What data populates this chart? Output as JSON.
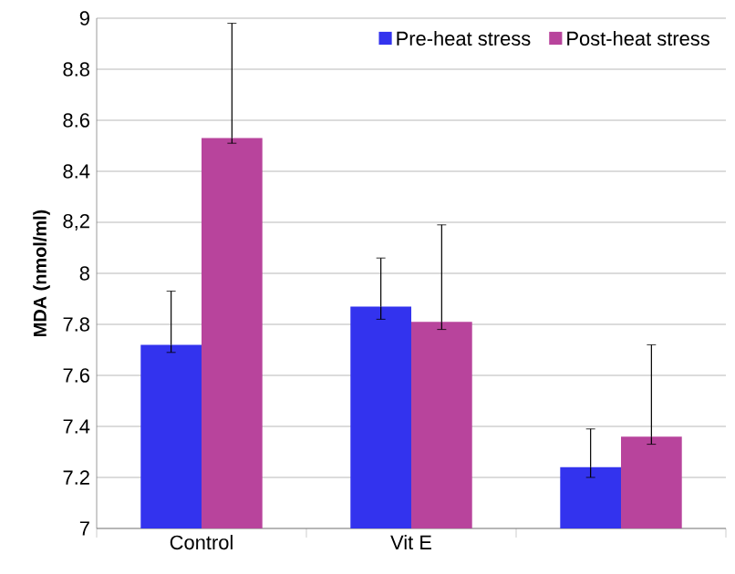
{
  "chart_data": {
    "type": "bar",
    "ylabel": "MDA (nmol/ml)",
    "categories": [
      "Control",
      "Vit E",
      null
    ],
    "series": [
      {
        "name": "Pre-heat stress",
        "color": "#3333ee",
        "values": [
          7.72,
          7.87,
          7.24
        ],
        "errors": [
          [
            7.69,
            7.93
          ],
          [
            7.82,
            8.06
          ],
          [
            7.2,
            7.39
          ]
        ]
      },
      {
        "name": "Post-heat stress",
        "color": "#b8449c",
        "values": [
          8.53,
          7.81,
          7.36
        ],
        "errors": [
          [
            8.51,
            8.98
          ],
          [
            7.78,
            8.19
          ],
          [
            7.33,
            7.72
          ]
        ]
      }
    ],
    "ylim": [
      7,
      9
    ],
    "yticks": [
      7,
      7.2,
      7.4,
      7.6,
      7.8,
      8,
      {
        "value": 8.2,
        "label": "8,2"
      },
      8.4,
      8.6,
      8.8,
      9
    ],
    "grid": "y",
    "legend": "top right"
  }
}
